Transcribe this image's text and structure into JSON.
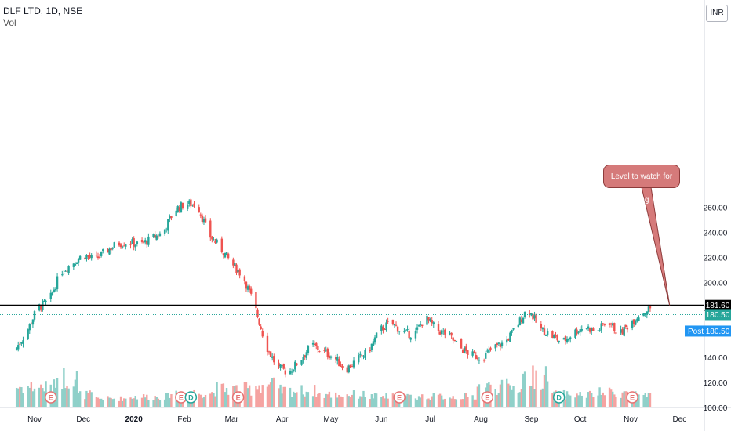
{
  "header": {
    "symbol": "DLF LTD, 1D, NSE",
    "volume_label": "Vol",
    "currency_button": "INR"
  },
  "annotations": {
    "callout_text": "Level to watch for long"
  },
  "price_labels": {
    "hline": "181.60",
    "last": "180.50",
    "post_tag": "Post",
    "post_value": "180.50"
  },
  "colors": {
    "up": "#26a69a",
    "down": "#ef5350",
    "up_vol": "#8fd0c9",
    "down_vol": "#f5a3a1",
    "hline": "#000000",
    "event_earnings": "#e57373",
    "event_dividend": "#26a69a",
    "post_tag": "#2196f3",
    "callout_fill": "#d57a7a"
  },
  "chart_data": {
    "type": "candlestick",
    "title": "DLF LTD, 1D, NSE",
    "ylabel": "INR",
    "ylim": [
      100,
      280
    ],
    "y_ticks": [
      "100.00",
      "120.00",
      "140.00",
      "160.00",
      "180.00",
      "200.00",
      "220.00",
      "240.00",
      "260.00"
    ],
    "x_ticks": [
      "Nov",
      "Dec",
      "2020",
      "Feb",
      "Mar",
      "Apr",
      "May",
      "Jun",
      "Jul",
      "Aug",
      "Sep",
      "Oct",
      "Nov",
      "Dec"
    ],
    "x_tick_dates": [
      "2019-11-01",
      "2019-12-01",
      "2020-01-01",
      "2020-02-01",
      "2020-03-01",
      "2020-04-01",
      "2020-05-01",
      "2020-06-01",
      "2020-07-01",
      "2020-08-01",
      "2020-09-01",
      "2020-10-01",
      "2020-11-01",
      "2020-12-01"
    ],
    "horizontal_line": 181.6,
    "last_price": 180.5,
    "series": [
      {
        "name": "close",
        "points": [
          [
            "2019-10-20",
            146
          ],
          [
            "2019-10-27",
            160
          ],
          [
            "2019-11-03",
            180
          ],
          [
            "2019-11-10",
            185
          ],
          [
            "2019-11-17",
            208
          ],
          [
            "2019-11-24",
            215
          ],
          [
            "2019-12-01",
            222
          ],
          [
            "2019-12-08",
            218
          ],
          [
            "2019-12-15",
            225
          ],
          [
            "2019-12-22",
            231
          ],
          [
            "2019-12-29",
            232
          ],
          [
            "2020-01-05",
            230
          ],
          [
            "2020-01-12",
            235
          ],
          [
            "2020-01-19",
            240
          ],
          [
            "2020-01-26",
            258
          ],
          [
            "2020-02-02",
            263
          ],
          [
            "2020-02-09",
            262
          ],
          [
            "2020-02-16",
            238
          ],
          [
            "2020-02-23",
            228
          ],
          [
            "2020-03-01",
            215
          ],
          [
            "2020-03-08",
            205
          ],
          [
            "2020-03-15",
            182
          ],
          [
            "2020-03-22",
            150
          ],
          [
            "2020-03-29",
            132
          ],
          [
            "2020-04-05",
            128
          ],
          [
            "2020-04-12",
            138
          ],
          [
            "2020-04-19",
            150
          ],
          [
            "2020-04-26",
            145
          ],
          [
            "2020-05-03",
            140
          ],
          [
            "2020-05-10",
            130
          ],
          [
            "2020-05-17",
            138
          ],
          [
            "2020-05-24",
            145
          ],
          [
            "2020-05-31",
            162
          ],
          [
            "2020-06-07",
            168
          ],
          [
            "2020-06-14",
            160
          ],
          [
            "2020-06-21",
            158
          ],
          [
            "2020-06-28",
            172
          ],
          [
            "2020-07-05",
            162
          ],
          [
            "2020-07-12",
            158
          ],
          [
            "2020-07-19",
            148
          ],
          [
            "2020-07-26",
            142
          ],
          [
            "2020-08-02",
            140
          ],
          [
            "2020-08-09",
            148
          ],
          [
            "2020-08-16",
            152
          ],
          [
            "2020-08-23",
            165
          ],
          [
            "2020-08-30",
            180
          ],
          [
            "2020-09-06",
            163
          ],
          [
            "2020-09-13",
            158
          ],
          [
            "2020-09-20",
            152
          ],
          [
            "2020-09-27",
            160
          ],
          [
            "2020-10-04",
            165
          ],
          [
            "2020-10-11",
            160
          ],
          [
            "2020-10-18",
            170
          ],
          [
            "2020-10-25",
            158
          ],
          [
            "2020-11-01",
            168
          ],
          [
            "2020-11-08",
            176
          ],
          [
            "2020-11-15",
            180.5
          ]
        ]
      },
      {
        "name": "volume",
        "points": [
          [
            "2019-11-03",
            9
          ],
          [
            "2019-11-24",
            14
          ],
          [
            "2019-12-01",
            5
          ],
          [
            "2019-12-15",
            3
          ],
          [
            "2020-01-12",
            4
          ],
          [
            "2020-02-02",
            6
          ],
          [
            "2020-03-08",
            8
          ],
          [
            "2020-03-22",
            10
          ],
          [
            "2020-04-05",
            7
          ],
          [
            "2020-05-10",
            5
          ],
          [
            "2020-06-07",
            4
          ],
          [
            "2020-07-05",
            4
          ],
          [
            "2020-08-23",
            9
          ],
          [
            "2020-08-30",
            14
          ],
          [
            "2020-09-27",
            5
          ],
          [
            "2020-10-25",
            6
          ],
          [
            "2020-11-15",
            4
          ]
        ]
      }
    ],
    "events": [
      {
        "date": "2019-11-11",
        "type": "E"
      },
      {
        "date": "2020-01-30",
        "type": "E"
      },
      {
        "date": "2020-02-05",
        "type": "D"
      },
      {
        "date": "2020-03-05",
        "type": "E"
      },
      {
        "date": "2020-06-12",
        "type": "E"
      },
      {
        "date": "2020-08-05",
        "type": "E"
      },
      {
        "date": "2020-09-18",
        "type": "D"
      },
      {
        "date": "2020-11-02",
        "type": "E"
      }
    ],
    "annotation": "Level to watch for long"
  }
}
